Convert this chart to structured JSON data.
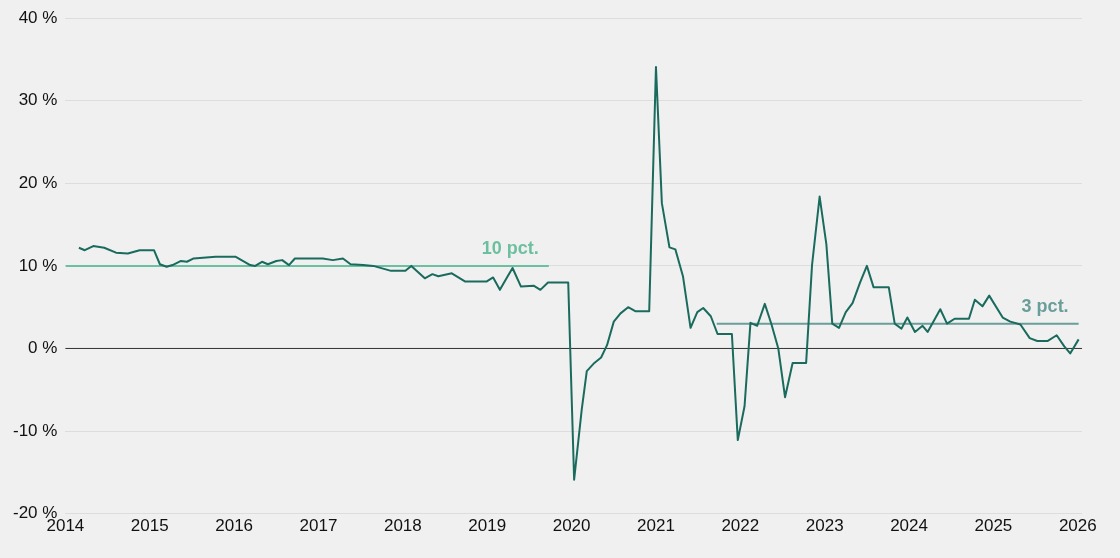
{
  "chart_data": {
    "type": "line",
    "x": [
      2014.16,
      2014.23,
      2014.33,
      2014.46,
      2014.6,
      2014.74,
      2014.88,
      2015.05,
      2015.12,
      2015.2,
      2015.27,
      2015.37,
      2015.44,
      2015.52,
      2015.78,
      2016.02,
      2016.19,
      2016.25,
      2016.33,
      2016.4,
      2016.5,
      2016.57,
      2016.65,
      2016.72,
      2017.05,
      2017.17,
      2017.29,
      2017.38,
      2017.53,
      2017.65,
      2017.86,
      2018.03,
      2018.1,
      2018.26,
      2018.35,
      2018.42,
      2018.58,
      2018.74,
      2018.99,
      2019.07,
      2019.15,
      2019.3,
      2019.4,
      2019.55,
      2019.63,
      2019.72,
      2019.96,
      2020.03,
      2020.12,
      2020.18,
      2020.27,
      2020.35,
      2020.42,
      2020.5,
      2020.58,
      2020.67,
      2020.76,
      2020.92,
      2021.0,
      2021.07,
      2021.16,
      2021.23,
      2021.32,
      2021.41,
      2021.49,
      2021.56,
      2021.65,
      2021.73,
      2021.9,
      2021.97,
      2022.05,
      2022.12,
      2022.2,
      2022.29,
      2022.37,
      2022.45,
      2022.53,
      2022.62,
      2022.78,
      2022.85,
      2022.94,
      2023.02,
      2023.09,
      2023.17,
      2023.25,
      2023.33,
      2023.42,
      2023.5,
      2023.58,
      2023.76,
      2023.83,
      2023.91,
      2023.98,
      2024.07,
      2024.16,
      2024.22,
      2024.37,
      2024.45,
      2024.54,
      2024.71,
      2024.78,
      2024.87,
      2024.95,
      2025.11,
      2025.2,
      2025.32,
      2025.43,
      2025.52,
      2025.64,
      2025.75,
      2025.84,
      2025.91,
      2026.01
    ],
    "series": [
      {
        "color": "#1a6b5e",
        "values": [
          12.2,
          11.9,
          12.4,
          12.2,
          11.6,
          11.5,
          11.9,
          11.9,
          10.2,
          9.9,
          10.1,
          10.6,
          10.5,
          10.9,
          11.1,
          11.1,
          10.1,
          10,
          10.5,
          10.2,
          10.6,
          10.7,
          10.1,
          10.9,
          10.9,
          10.7,
          10.9,
          10.2,
          10.1,
          10,
          9.4,
          9.4,
          10,
          8.5,
          9,
          8.75,
          9.1,
          8.1,
          8.1,
          8.6,
          7.1,
          9.75,
          7.5,
          7.6,
          7.1,
          8,
          8,
          -15.9,
          -7.4,
          -2.75,
          -1.75,
          -1.1,
          0.4,
          3.25,
          4.25,
          5,
          4.5,
          4.5,
          34.1,
          17.6,
          12.25,
          12,
          8.75,
          2.5,
          4.4,
          4.9,
          3.9,
          1.75,
          1.75,
          -11.1,
          -7,
          3.1,
          2.75,
          5.4,
          2.9,
          0,
          -5.9,
          -1.75,
          -1.75,
          10.1,
          18.4,
          12.6,
          3,
          2.5,
          4.4,
          5.5,
          8,
          10,
          7.4,
          7.4,
          3,
          2.4,
          3.75,
          2,
          2.75,
          2,
          4.75,
          3,
          3.6,
          3.6,
          5.9,
          5.1,
          6.4,
          3.75,
          3.25,
          2.9,
          1.25,
          0.9,
          0.9,
          1.6,
          0.25,
          -0.6,
          1.1
        ]
      },
      {
        "name": "10 pct.",
        "color": "#6cc0a0",
        "x": [
          2014,
          2019.73
        ],
        "values": [
          10,
          10
        ]
      },
      {
        "name": "3 pct.",
        "color": "#6a9e9a",
        "x": [
          2021.72,
          2026.01
        ],
        "values": [
          3,
          3
        ]
      }
    ],
    "xlim": [
      2014,
      2026.05
    ],
    "xticks": [
      2014,
      2015,
      2016,
      2017,
      2018,
      2019,
      2020,
      2021,
      2022,
      2023,
      2024,
      2025,
      2026
    ],
    "ylim": [
      -20,
      40
    ],
    "yticks": [
      {
        "value": -20,
        "label": "-20 %"
      },
      {
        "value": -10,
        "label": "-10 %"
      },
      {
        "value": 0,
        "label": "0 %"
      },
      {
        "value": 10,
        "label": "10 %"
      },
      {
        "value": 20,
        "label": "20 %"
      },
      {
        "value": 30,
        "label": "30 %"
      },
      {
        "value": 40,
        "label": "40 %"
      }
    ],
    "ref_lines": [
      {
        "axis": "y",
        "value": 0,
        "color": "#333333"
      }
    ],
    "grid": "y",
    "legend": false,
    "marker": "none",
    "line_style": "solid"
  }
}
